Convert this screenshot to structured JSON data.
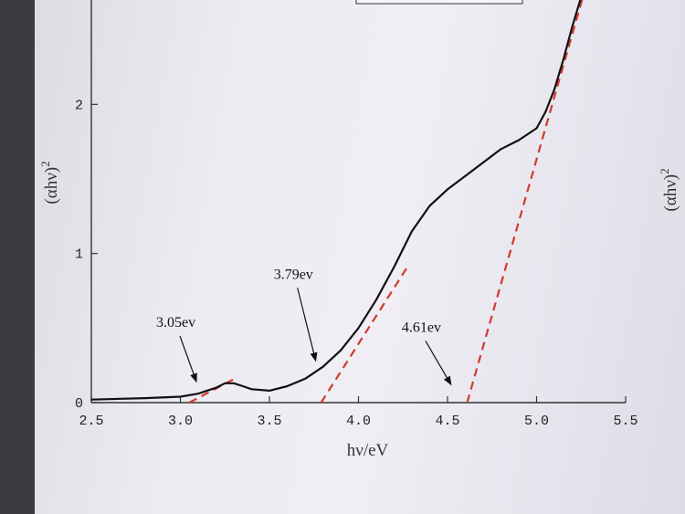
{
  "chart_data": {
    "type": "line",
    "xlabel": "hν/eV",
    "ylabel": "(αhν)",
    "ylabel_sup": "2",
    "right_label": "(αhν)",
    "right_label_sup": "2",
    "xlim": [
      2.5,
      5.5
    ],
    "ylim": [
      0,
      2.7
    ],
    "x_ticks": [
      2.5,
      3.0,
      3.5,
      4.0,
      4.5,
      5.0,
      5.5
    ],
    "x_tick_labels": [
      "2.5",
      "3.0",
      "3.5",
      "4.0",
      "4.5",
      "5.0",
      "5.5"
    ],
    "y_ticks": [
      0,
      1,
      2
    ],
    "y_tick_labels": [
      "0",
      "1",
      "2"
    ],
    "grid": false,
    "series": [
      {
        "x": [
          2.5,
          2.8,
          3.0,
          3.1,
          3.2,
          3.25,
          3.3,
          3.35,
          3.4,
          3.5,
          3.6,
          3.7,
          3.8,
          3.9,
          4.0,
          4.1,
          4.2,
          4.3,
          4.4,
          4.5,
          4.6,
          4.7,
          4.8,
          4.9,
          5.0,
          5.05,
          5.1,
          5.15,
          5.2,
          5.25
        ],
        "y": [
          0.02,
          0.03,
          0.04,
          0.06,
          0.1,
          0.13,
          0.13,
          0.11,
          0.09,
          0.08,
          0.11,
          0.16,
          0.24,
          0.35,
          0.5,
          0.69,
          0.91,
          1.15,
          1.32,
          1.43,
          1.52,
          1.61,
          1.7,
          1.76,
          1.84,
          1.95,
          2.1,
          2.3,
          2.52,
          2.72
        ],
        "color": "#111111"
      }
    ],
    "fit_lines": [
      {
        "x": [
          3.05,
          3.32
        ],
        "y": [
          0.0,
          0.17
        ],
        "color": "#d23a2e"
      },
      {
        "x": [
          3.79,
          4.28
        ],
        "y": [
          0.0,
          0.92
        ],
        "color": "#d23a2e"
      },
      {
        "x": [
          4.61,
          5.26
        ],
        "y": [
          0.0,
          2.72
        ],
        "color": "#d23a2e"
      }
    ],
    "annotations": [
      {
        "text": "3.05ev",
        "target": [
          3.09,
          0.14
        ]
      },
      {
        "text": "3.79ev",
        "target": [
          3.76,
          0.28
        ]
      },
      {
        "text": "4.61ev",
        "target": [
          4.52,
          0.12
        ]
      }
    ]
  }
}
